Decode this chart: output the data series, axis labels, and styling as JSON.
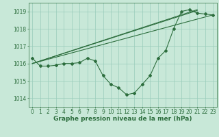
{
  "title": "Graphe pression niveau de la mer (hPa)",
  "xlabel_ticks": [
    0,
    1,
    2,
    3,
    4,
    5,
    6,
    7,
    8,
    9,
    10,
    11,
    12,
    13,
    14,
    15,
    16,
    17,
    18,
    19,
    20,
    21,
    22,
    23
  ],
  "ylim": [
    1013.5,
    1019.5
  ],
  "xlim": [
    -0.5,
    23.5
  ],
  "yticks": [
    1014,
    1015,
    1016,
    1017,
    1018,
    1019
  ],
  "background_color": "#c8e8d8",
  "grid_color": "#99ccbb",
  "line_color": "#2d6e3e",
  "main_series_x": [
    0,
    1,
    2,
    3,
    4,
    5,
    6,
    7,
    8,
    9,
    10,
    11,
    12,
    13,
    14,
    15,
    16,
    17,
    18,
    19,
    20,
    21,
    22,
    23
  ],
  "main_series_y": [
    1016.3,
    1015.85,
    1015.85,
    1015.9,
    1016.0,
    1016.0,
    1016.05,
    1016.3,
    1016.15,
    1015.3,
    1014.8,
    1014.6,
    1014.2,
    1014.3,
    1014.8,
    1015.3,
    1016.3,
    1016.75,
    1018.0,
    1019.0,
    1019.1,
    1018.9,
    1018.85,
    1018.8
  ],
  "trend_lines": [
    {
      "x": [
        0,
        21
      ],
      "y": [
        1016.0,
        1019.05
      ]
    },
    {
      "x": [
        0,
        21
      ],
      "y": [
        1016.0,
        1019.1
      ]
    },
    {
      "x": [
        0,
        23
      ],
      "y": [
        1016.0,
        1018.8
      ]
    }
  ],
  "font_color": "#2d6e3e",
  "font_size_title": 6.5,
  "font_size_ticks": 5.5,
  "marker_size": 2.0,
  "line_width": 0.8
}
